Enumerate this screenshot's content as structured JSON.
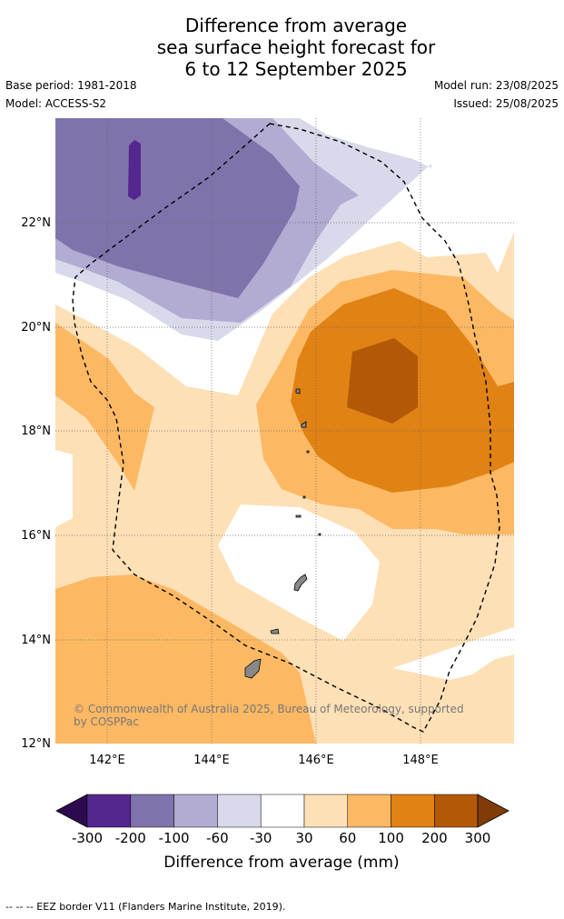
{
  "title": {
    "line1": "Difference from average",
    "line2": "sea surface height forecast for",
    "line3": "6 to 12 September 2025"
  },
  "meta": {
    "base_period": "Base period: 1981-2018",
    "model": "Model: ACCESS-S2",
    "model_run": "Model run: 23/08/2025",
    "issued": "Issued: 25/08/2025"
  },
  "map": {
    "lon_range": [
      141,
      149.8
    ],
    "lat_range": [
      12,
      24
    ],
    "lon_ticks": [
      "142°E",
      "144°E",
      "146°E",
      "148°E"
    ],
    "lat_ticks": [
      "12°N",
      "14°N",
      "16°N",
      "18°N",
      "20°N",
      "22°N"
    ],
    "credit": "© Commonwealth of Australia 2025, Bureau of Meteorology, supported by COSPPac"
  },
  "colorbar": {
    "labels": [
      "-300",
      "-200",
      "-100",
      "-60",
      "-30",
      "30",
      "60",
      "100",
      "200",
      "300"
    ],
    "title": "Difference from average (mm)",
    "colors": {
      "below_min": "#2d0a4e",
      "n300_200": "#54278f",
      "n200_100": "#8073ac",
      "n100_60": "#b2abd2",
      "n60_30": "#d8daeb",
      "n30_30": "#ffffff",
      "p30_60": "#fee0b6",
      "p60_100": "#fdb863",
      "p100_200": "#e08214",
      "p200_300": "#b35806",
      "above_max": "#7f3b08"
    }
  },
  "footer": "--  --  -- EEZ border V11 (Flanders Marine Institute, 2019)."
}
